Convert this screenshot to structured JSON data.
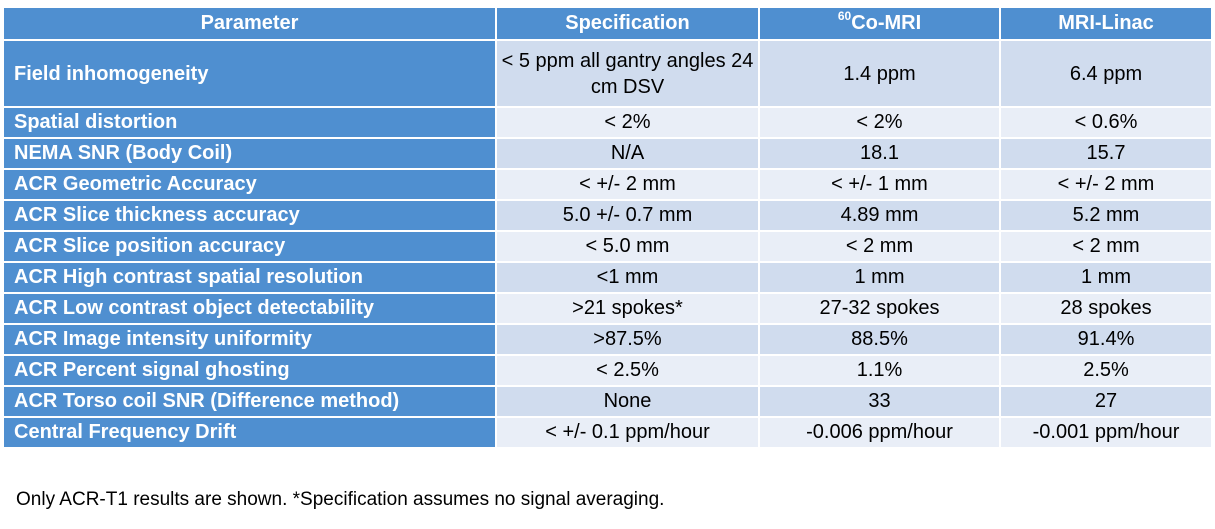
{
  "table": {
    "headers": {
      "parameter": "Parameter",
      "specification": "Specification",
      "co_mri_sup": "60",
      "co_mri": "Co-MRI",
      "mri_linac": "MRI-Linac"
    },
    "rows": [
      {
        "parameter": "Field inhomogeneity",
        "spec": "< 5 ppm all gantry angles 24 cm DSV",
        "co": "1.4 ppm",
        "linac": "6.4 ppm"
      },
      {
        "parameter": "Spatial distortion",
        "spec": "< 2%",
        "co": "< 2%",
        "linac": "< 0.6%"
      },
      {
        "parameter": "NEMA SNR (Body Coil)",
        "spec": "N/A",
        "co": "18.1",
        "linac": "15.7"
      },
      {
        "parameter": "ACR Geometric Accuracy",
        "spec": "< +/- 2 mm",
        "co": "< +/- 1 mm",
        "linac": "< +/- 2 mm"
      },
      {
        "parameter": "ACR Slice thickness accuracy",
        "spec": "5.0 +/- 0.7 mm",
        "co": "4.89 mm",
        "linac": "5.2 mm"
      },
      {
        "parameter": "ACR Slice position accuracy",
        "spec": "< 5.0 mm",
        "co": "< 2 mm",
        "linac": "< 2 mm"
      },
      {
        "parameter": "ACR High contrast spatial resolution",
        "spec": "<1 mm",
        "co": "1 mm",
        "linac": "1 mm"
      },
      {
        "parameter": "ACR Low contrast object detectability",
        "spec": ">21 spokes*",
        "co": "27-32 spokes",
        "linac": "28 spokes"
      },
      {
        "parameter": "ACR Image  intensity uniformity",
        "spec": ">87.5%",
        "co": "88.5%",
        "linac": "91.4%"
      },
      {
        "parameter": "ACR Percent signal ghosting",
        "spec": "< 2.5%",
        "co": "1.1%",
        "linac": "2.5%"
      },
      {
        "parameter": "ACR Torso coil SNR (Difference method)",
        "spec": "None",
        "co": "33",
        "linac": "27"
      },
      {
        "parameter": "Central Frequency Drift",
        "spec": "< +/- 0.1 ppm/hour",
        "co": "-0.006 ppm/hour",
        "linac": "-0.001 ppm/hour"
      }
    ]
  },
  "footnote": "Only ACR-T1 results are shown. *Specification assumes no signal averaging."
}
